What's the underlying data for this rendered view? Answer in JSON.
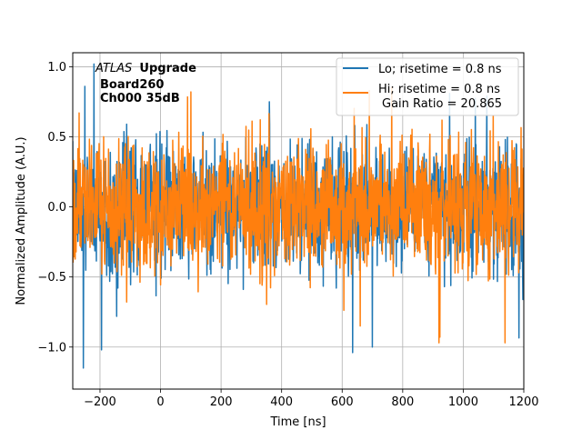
{
  "chart_data": {
    "type": "line",
    "title": "",
    "xlabel": "Time [ns]",
    "ylabel": "Normalized Amplitude (A.U.)",
    "xlim": [
      -290,
      1200
    ],
    "ylim": [
      -1.3,
      1.1
    ],
    "xticks": [
      -200,
      0,
      200,
      400,
      600,
      800,
      1000,
      1200
    ],
    "xtick_labels": [
      "−200",
      "0",
      "200",
      "400",
      "600",
      "800",
      "1000",
      "1200"
    ],
    "yticks": [
      -1.0,
      -0.5,
      0.0,
      0.5,
      1.0
    ],
    "ytick_labels": [
      "−1.0",
      "−0.5",
      "0.0",
      "0.5",
      "1.0"
    ],
    "grid": true,
    "annotation": {
      "atlas_italic": "ATLAS",
      "atlas_bold": "Upgrade",
      "line2": "Board260",
      "line3": "Ch000 35dB"
    },
    "legend": {
      "placement": "top-right",
      "entries": [
        {
          "label": "Lo; risetime = 0.8 ns",
          "color": "#1f77b4"
        },
        {
          "label": "Hi; risetime = 0.8 ns",
          "color": "#ff7f0e"
        }
      ],
      "extra_text": "Gain Ratio = 20.865"
    },
    "series": [
      {
        "name": "Lo; risetime = 0.8 ns",
        "color": "#1f77b4",
        "x_start": -290,
        "x_end": 1200,
        "num_points": 1490,
        "noise_amplitude_range": [
          -1.15,
          1.02
        ],
        "typical_envelope": [
          -0.5,
          0.55
        ],
        "extremes": [
          {
            "x": -255,
            "y": -1.15
          },
          {
            "x": -220,
            "y": 1.02
          },
          {
            "x": -195,
            "y": -1.02
          },
          {
            "x": 635,
            "y": -1.04
          },
          {
            "x": 700,
            "y": -1.0
          },
          {
            "x": 955,
            "y": 0.81
          }
        ]
      },
      {
        "name": "Hi; risetime = 0.8 ns",
        "color": "#ff7f0e",
        "x_start": -290,
        "x_end": 1200,
        "num_points": 1490,
        "noise_amplitude_range": [
          -0.97,
          0.85
        ],
        "typical_envelope": [
          -0.45,
          0.45
        ],
        "extremes": [
          {
            "x": 920,
            "y": -0.97
          },
          {
            "x": 690,
            "y": 0.83
          },
          {
            "x": 100,
            "y": 0.82
          },
          {
            "x": 660,
            "y": -0.85
          }
        ]
      }
    ]
  }
}
